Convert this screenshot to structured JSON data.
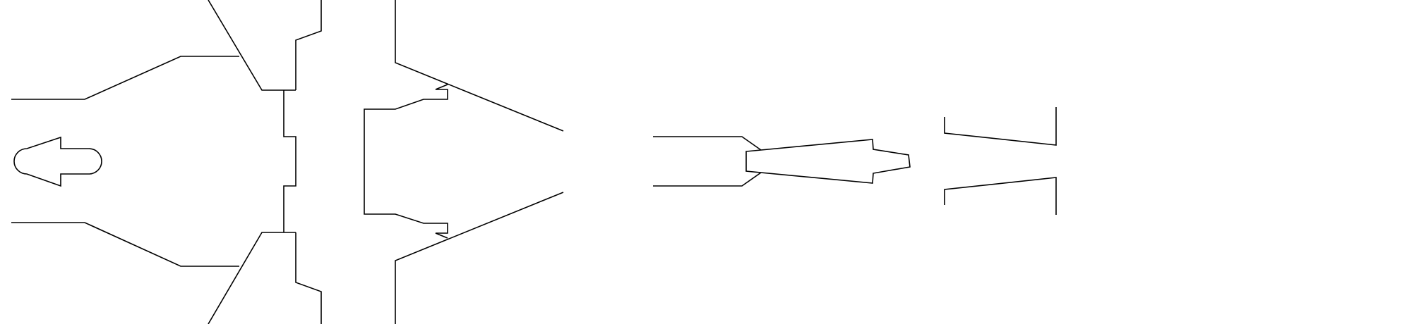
{
  "drawing": {
    "background_color": "#ffffff",
    "line_color": "#000000",
    "line_weight_class": "thin",
    "printed_text": []
  }
}
